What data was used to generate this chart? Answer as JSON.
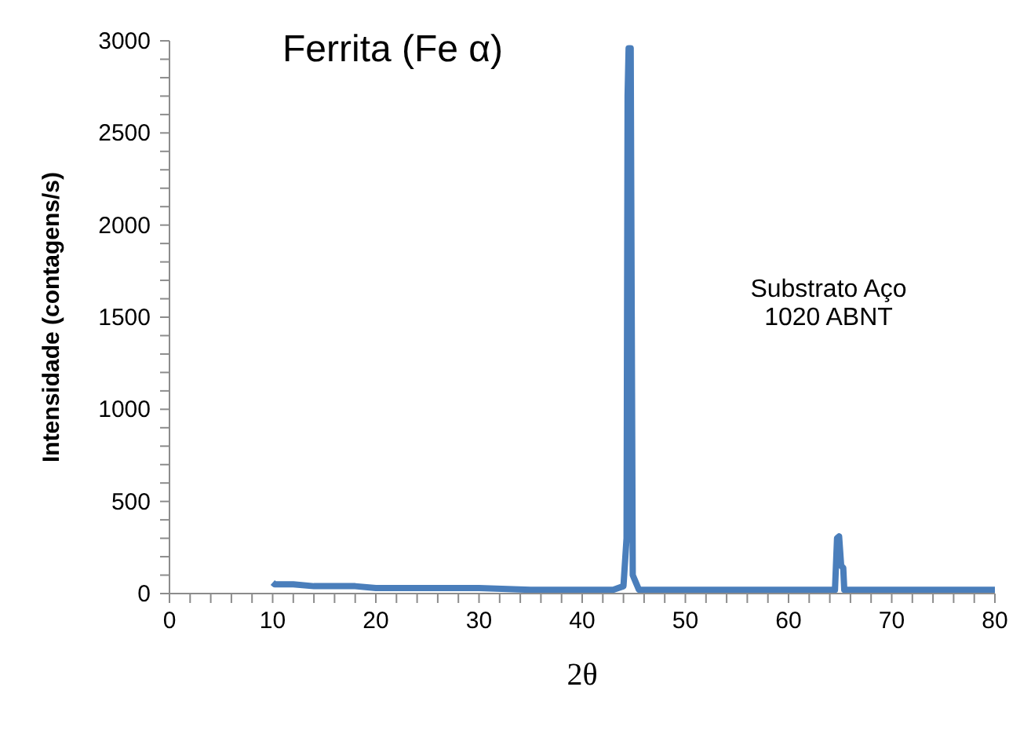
{
  "chart_data": {
    "type": "line",
    "title": "Ferrita (Fe α)",
    "xlabel": "2θ",
    "ylabel": "Intensidade (contagens/s)",
    "annotations": [
      "Substrato Aço 1020 ABNT"
    ],
    "series": [
      {
        "color": "#4a7ebb",
        "x": [
          10,
          10.2,
          12,
          14,
          16,
          18,
          20,
          25,
          30,
          35,
          40,
          43,
          44,
          44.3,
          44.4,
          44.5,
          44.7,
          44.8,
          44.9,
          45.2,
          45.5,
          50,
          55,
          60,
          64.5,
          64.7,
          64.9,
          65.1,
          65.3,
          65.4,
          70,
          80
        ],
        "values": [
          60,
          50,
          50,
          40,
          40,
          40,
          30,
          30,
          30,
          20,
          20,
          20,
          40,
          300,
          2700,
          2960,
          2960,
          1500,
          100,
          60,
          20,
          20,
          20,
          20,
          20,
          300,
          310,
          150,
          140,
          20,
          20,
          20
        ]
      }
    ],
    "xlim": [
      0,
      80
    ],
    "xticks": [
      0,
      {
        "value": 2,
        "label": null
      },
      {
        "value": 4,
        "label": null
      },
      {
        "value": 6,
        "label": null
      },
      {
        "value": 8,
        "label": null
      },
      10,
      {
        "value": 12,
        "label": null
      },
      {
        "value": 14,
        "label": null
      },
      {
        "value": 16,
        "label": null
      },
      {
        "value": 18,
        "label": null
      },
      20,
      {
        "value": 22,
        "label": null
      },
      {
        "value": 24,
        "label": null
      },
      {
        "value": 26,
        "label": null
      },
      {
        "value": 28,
        "label": null
      },
      30,
      {
        "value": 32,
        "label": null
      },
      {
        "value": 34,
        "label": null
      },
      {
        "value": 36,
        "label": null
      },
      {
        "value": 38,
        "label": null
      },
      40,
      {
        "value": 42,
        "label": null
      },
      {
        "value": 44,
        "label": null
      },
      {
        "value": 46,
        "label": null
      },
      {
        "value": 48,
        "label": null
      },
      50,
      {
        "value": 52,
        "label": null
      },
      {
        "value": 54,
        "label": null
      },
      {
        "value": 56,
        "label": null
      },
      {
        "value": 58,
        "label": null
      },
      60,
      {
        "value": 62,
        "label": null
      },
      {
        "value": 64,
        "label": null
      },
      {
        "value": 66,
        "label": null
      },
      {
        "value": 68,
        "label": null
      },
      70,
      {
        "value": 72,
        "label": null
      },
      {
        "value": 74,
        "label": null
      },
      {
        "value": 76,
        "label": null
      },
      {
        "value": 78,
        "label": null
      },
      80
    ],
    "ylim": [
      0,
      3000
    ],
    "yticks": [
      0,
      {
        "value": 100,
        "label": null
      },
      {
        "value": 200,
        "label": null
      },
      {
        "value": 300,
        "label": null
      },
      {
        "value": 400,
        "label": null
      },
      500,
      {
        "value": 600,
        "label": null
      },
      {
        "value": 700,
        "label": null
      },
      {
        "value": 800,
        "label": null
      },
      {
        "value": 900,
        "label": null
      },
      1000,
      {
        "value": 1100,
        "label": null
      },
      {
        "value": 1200,
        "label": null
      },
      {
        "value": 1300,
        "label": null
      },
      {
        "value": 1400,
        "label": null
      },
      1500,
      {
        "value": 1600,
        "label": null
      },
      {
        "value": 1700,
        "label": null
      },
      {
        "value": 1800,
        "label": null
      },
      {
        "value": 1900,
        "label": null
      },
      2000,
      {
        "value": 2100,
        "label": null
      },
      {
        "value": 2200,
        "label": null
      },
      {
        "value": 2300,
        "label": null
      },
      {
        "value": 2400,
        "label": null
      },
      2500,
      {
        "value": 2600,
        "label": null
      },
      {
        "value": 2700,
        "label": null
      },
      {
        "value": 2800,
        "label": null
      },
      {
        "value": 2900,
        "label": null
      },
      3000
    ],
    "grid": false,
    "legend": false,
    "marker": "none",
    "line_style": "solid"
  }
}
